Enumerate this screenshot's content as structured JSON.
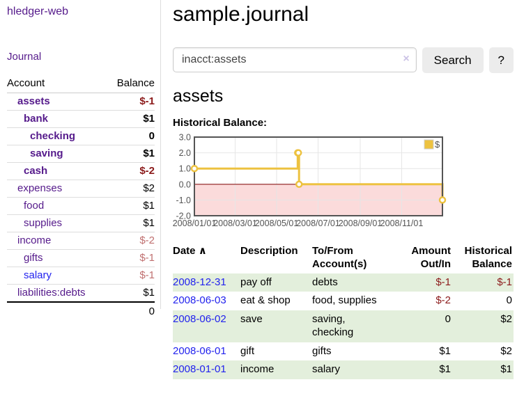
{
  "app": {
    "title": "hledger-web"
  },
  "sidebar": {
    "journal_label": "Journal",
    "accounts_table": {
      "headers": {
        "account": "Account",
        "balance": "Balance"
      },
      "rows": [
        {
          "name": "assets",
          "balance": "$-1",
          "depth": 1,
          "bold": true,
          "balance_class": "neg-strong"
        },
        {
          "name": "bank",
          "balance": "$1",
          "depth": 2,
          "bold": true,
          "balance_class": ""
        },
        {
          "name": "checking",
          "balance": "0",
          "depth": 3,
          "bold": true,
          "balance_class": ""
        },
        {
          "name": "saving",
          "balance": "$1",
          "depth": 3,
          "bold": true,
          "balance_class": ""
        },
        {
          "name": "cash",
          "balance": "$-2",
          "depth": 2,
          "bold": true,
          "balance_class": "neg-strong"
        },
        {
          "name": "expenses",
          "balance": "$2",
          "depth": 1,
          "bold": false,
          "balance_class": ""
        },
        {
          "name": "food",
          "balance": "$1",
          "depth": 2,
          "bold": false,
          "balance_class": ""
        },
        {
          "name": "supplies",
          "balance": "$1",
          "depth": 2,
          "bold": false,
          "balance_class": ""
        },
        {
          "name": "income",
          "balance": "$-2",
          "depth": 1,
          "bold": false,
          "balance_class": "neg-soft"
        },
        {
          "name": "gifts",
          "balance": "$-1",
          "depth": 2,
          "bold": false,
          "balance_class": "neg-soft"
        },
        {
          "name": "salary",
          "balance": "$-1",
          "depth": 2,
          "bold": false,
          "balance_class": "neg-soft",
          "link": "blue"
        },
        {
          "name": "liabilities:debts",
          "balance": "$1",
          "depth": 1,
          "bold": false,
          "balance_class": ""
        }
      ],
      "total": "0"
    }
  },
  "main": {
    "title": "sample.journal",
    "account_heading": "assets",
    "chart_title": "Historical Balance:"
  },
  "search": {
    "value": "inacct:assets",
    "clear_icon": "×",
    "button_label": "Search",
    "help_label": "?"
  },
  "chart_data": {
    "type": "line",
    "step": true,
    "title": "Historical Balance:",
    "series": [
      {
        "name": "$",
        "color": "#edc240",
        "points": [
          [
            "2008-01-01",
            1
          ],
          [
            "2008-06-01",
            2
          ],
          [
            "2008-06-02",
            2
          ],
          [
            "2008-06-03",
            0
          ],
          [
            "2008-12-31",
            -1
          ]
        ]
      }
    ],
    "xlim": [
      "2008-01-01",
      "2008-12-31"
    ],
    "ylim": [
      -2,
      3
    ],
    "x_ticks": [
      "2008/01/01",
      "2008/03/01",
      "2008/05/01",
      "2008/07/01",
      "2008/09/01",
      "2008/11/01"
    ],
    "y_ticks": [
      3,
      2,
      1,
      0,
      -1,
      -2
    ],
    "y_tick_labels": [
      "3.0",
      "2.0",
      "1.0",
      "0.0",
      "-1.0",
      "-2.0"
    ],
    "legend": {
      "label": "$",
      "position": "top-right"
    },
    "grid": true,
    "negative_region_color": "#fbdbdb",
    "zero_line_color": "#8b1a1a",
    "grid_color": "#e6e6e6",
    "border_color": "#545454",
    "tick_text_color": "#545454"
  },
  "register": {
    "headers": {
      "date": "Date",
      "date_sort": "∧",
      "description": "Description",
      "tofrom": "To/From\nAccount(s)",
      "amount": "Amount\nOut/In",
      "balance": "Historical\nBalance"
    },
    "rows": [
      {
        "date": "2008-12-31",
        "description": "pay off",
        "tofrom": "debts",
        "amount": "$-1",
        "balance": "$-1",
        "amount_class": "neg-strong",
        "balance_class": "neg-strong"
      },
      {
        "date": "2008-06-03",
        "description": "eat & shop",
        "tofrom": "food, supplies",
        "amount": "$-2",
        "balance": "0",
        "amount_class": "neg-strong",
        "balance_class": ""
      },
      {
        "date": "2008-06-02",
        "description": "save",
        "tofrom": "saving,\nchecking",
        "amount": "0",
        "balance": "$2",
        "amount_class": "",
        "balance_class": ""
      },
      {
        "date": "2008-06-01",
        "description": "gift",
        "tofrom": "gifts",
        "amount": "$1",
        "balance": "$2",
        "amount_class": "",
        "balance_class": ""
      },
      {
        "date": "2008-01-01",
        "description": "income",
        "tofrom": "salary",
        "amount": "$1",
        "balance": "$1",
        "amount_class": "",
        "balance_class": ""
      }
    ]
  },
  "colors": {
    "accent_purple": "#551a8b",
    "link_blue": "#2222ee",
    "negative_strong": "#8b1a1a",
    "negative_soft": "#c07070",
    "row_green": "#e3efdc",
    "chart_yellow": "#edc240"
  }
}
